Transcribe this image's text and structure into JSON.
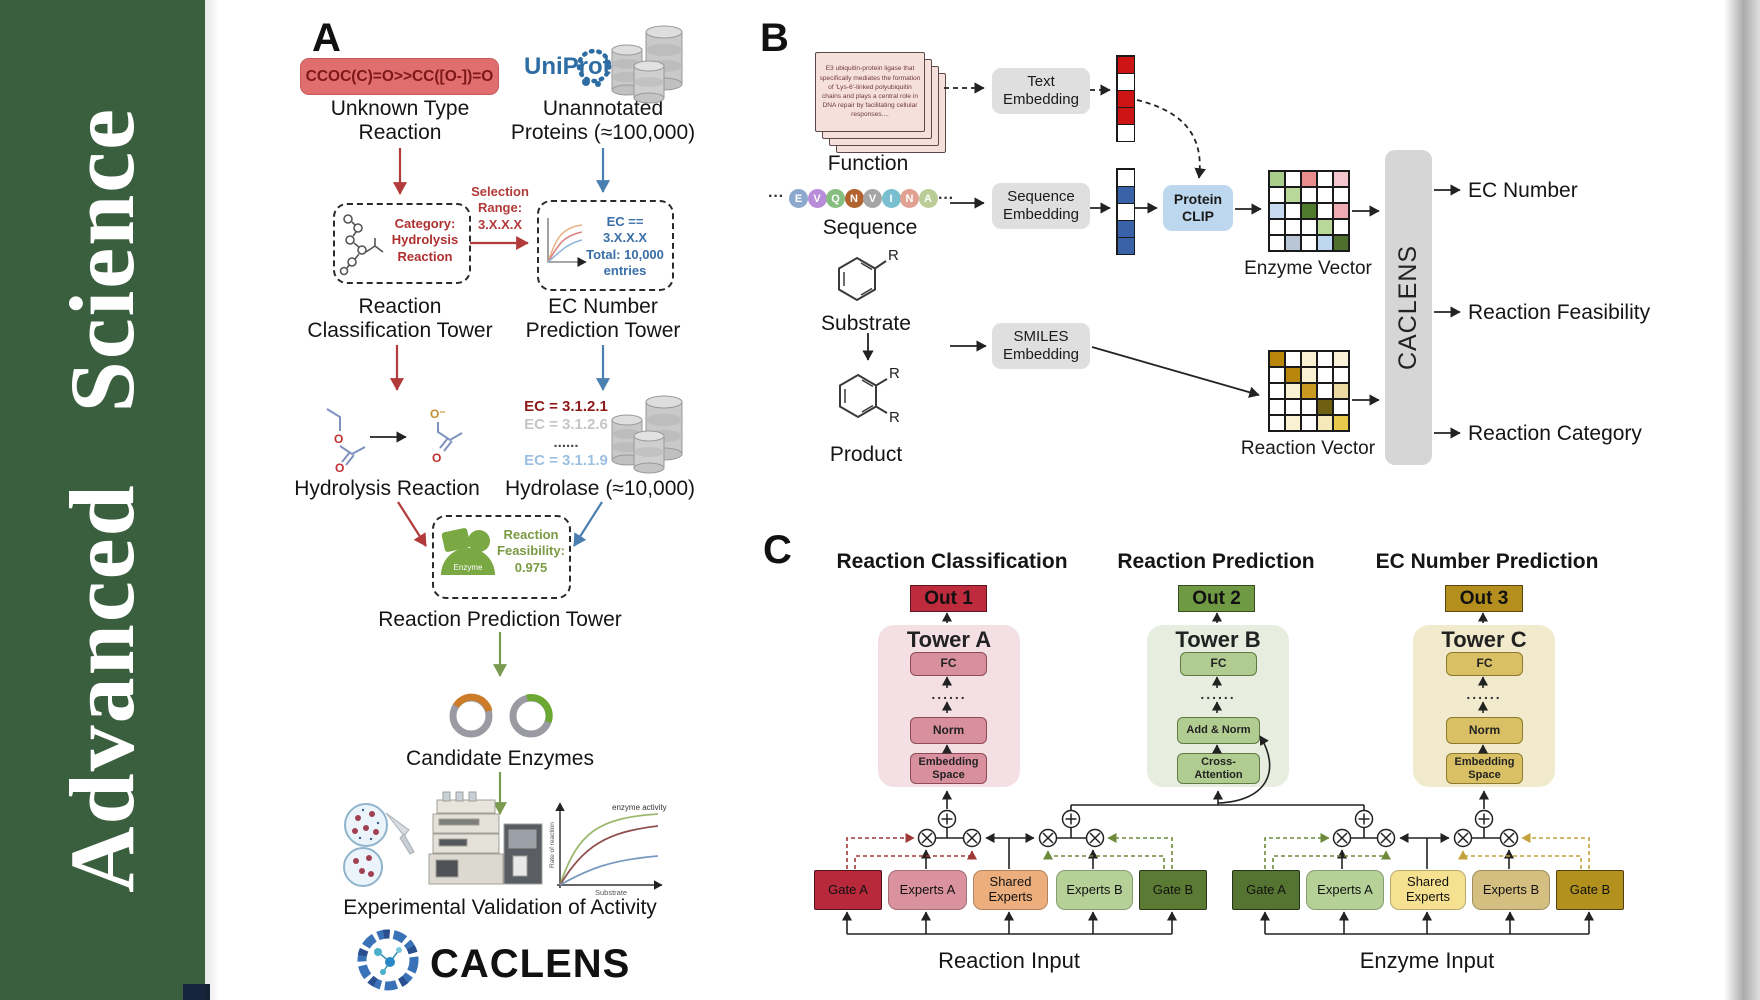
{
  "journal": {
    "spine_title": "Advanced  Science"
  },
  "panel_a": {
    "label": "A",
    "smiles": "CCOC(C)=O>>CC([O-])=O",
    "unknown_reaction_label": "Unknown Type\nReaction",
    "uniprot": "UniProt",
    "unannotated_label": "Unannotated\nProteins (≈100,000)",
    "category_box": "Category:\nHydrolysis\nReaction",
    "selection_label": "Selection\nRange:\n3.X.X.X",
    "ec_filter_box": "EC == 3.X.X.X\nTotal: 10,000\nentries",
    "classification_tower_label": "Reaction\nClassification Tower",
    "ec_tower_label": "EC Number\nPrediction Tower",
    "hydrolysis_label": "Hydrolysis Reaction",
    "ec_list": [
      {
        "text": "EC = 3.1.2.1",
        "color": "#8e1a1a"
      },
      {
        "text": "EC = 3.1.2.6",
        "color": "#c6c6c6"
      },
      {
        "text": "......",
        "color": "#4a4a4a"
      },
      {
        "text": "EC = 3.1.1.9",
        "color": "#9cc0e0"
      }
    ],
    "hydrolase_label": "Hydrolase (≈10,000)",
    "enzyme_badge": "Enzyme",
    "feasibility_label": "Reaction\nFeasibility:\n0.975",
    "prediction_tower_label": "Reaction Prediction Tower",
    "candidates_label": "Candidate Enzymes",
    "validation_label": "Experimental Validation of Activity",
    "activity_plot": {
      "ylabel": "Rate of reaction",
      "xlabel": "Substrate",
      "annotation": "enzyme activity"
    },
    "logo_text": "CACLENS",
    "atoms": {
      "o1": "O",
      "o2": "O",
      "o_minus": "O⁻",
      "o3": "O"
    }
  },
  "panel_b": {
    "label": "B",
    "function_card": "E3 ubiquitin-protein ligase that specifically mediates the formation of 'Lys-6'-linked polyubiquitin chains and plays a central role in DNA repair by facilitating cellular responses....",
    "function_label": "Function",
    "seq_ellipsis_left": "···",
    "seq_ellipsis_right": "···",
    "sequence": [
      {
        "letter": "E",
        "color": "#8ca8cc"
      },
      {
        "letter": "V",
        "color": "#b98cd9"
      },
      {
        "letter": "Q",
        "color": "#86be7f"
      },
      {
        "letter": "N",
        "color": "#b2622f"
      },
      {
        "letter": "V",
        "color": "#a5a5a5"
      },
      {
        "letter": "I",
        "color": "#79bfcf"
      },
      {
        "letter": "N",
        "color": "#e0a193"
      },
      {
        "letter": "A",
        "color": "#bbcd96"
      }
    ],
    "sequence_label": "Sequence",
    "substrate_label": "Substrate",
    "product_label": "Product",
    "r1": "R",
    "r2": "R",
    "r3": "R",
    "text_embedding": "Text\nEmbedding",
    "sequence_embedding": "Sequence\nEmbedding",
    "smiles_embedding": "SMILES\nEmbedding",
    "protein_clip": "Protein\nCLIP",
    "text_vector": [
      "#cc1414",
      "#ffffff",
      "#cc1414",
      "#cc1414",
      "#ffffff"
    ],
    "sequence_vector": [
      "#ffffff",
      "#3a62a8",
      "#ffffff",
      "#3a62a8",
      "#3a62a8"
    ],
    "enzyme_vector_label": "Enzyme Vector",
    "reaction_vector_label": "Reaction Vector",
    "enzyme_matrix": [
      [
        "#a9cd8b",
        "#ffffff",
        "#e98c8c",
        "#ffffff",
        "#f4c6ce"
      ],
      [
        "#ffffff",
        "#b9d99b",
        "#ffffff",
        "#ffffff",
        "#ffffff"
      ],
      [
        "#c6daf0",
        "#ffffff",
        "#4f7b2f",
        "#ffffff",
        "#f0aab2"
      ],
      [
        "#ffffff",
        "#ffffff",
        "#ffffff",
        "#b9d99b",
        "#ffffff"
      ],
      [
        "#ffffff",
        "#b9c6d6",
        "#ffffff",
        "#bed6f0",
        "#4f6f2f"
      ]
    ],
    "reaction_matrix": [
      [
        "#b8860b",
        "#ffffff",
        "#f9f1d1",
        "#ffffff",
        "#fbf3d9"
      ],
      [
        "#ffffff",
        "#b8860b",
        "#f9f1d1",
        "#ffffff",
        "#ffffff"
      ],
      [
        "#ffffff",
        "#f9f1d1",
        "#c99a1f",
        "#ffffff",
        "#eadaa2"
      ],
      [
        "#ffffff",
        "#ffffff",
        "#ffffff",
        "#6f5f10",
        "#ffffff"
      ],
      [
        "#ffffff",
        "#f9f1d1",
        "#ffffff",
        "#f6e9b9",
        "#e9c94b"
      ]
    ],
    "caclens": "CACLENS",
    "outputs": [
      "EC Number",
      "Reaction Feasibility",
      "Reaction Category"
    ]
  },
  "panel_c": {
    "label": "C",
    "towers": [
      {
        "heading": "Reaction Classification",
        "out": "Out 1",
        "tower": "Tower A",
        "fc": "FC",
        "dots": "......",
        "mid": "Norm",
        "bottom": "Embedding\nSpace",
        "out_bg": "#be2b3c",
        "bg": "#f4e0e4",
        "block_bg": "#d9909e",
        "block_border": "#8e4a56"
      },
      {
        "heading": "Reaction Prediction",
        "out": "Out 2",
        "tower": "Tower B",
        "fc": "FC",
        "dots": "......",
        "mid": "Add & Norm",
        "bottom": "Cross-\nAttention",
        "out_bg": "#6f9a43",
        "bg": "#e8eedf",
        "block_bg": "#b0cc90",
        "block_border": "#5e7a42"
      },
      {
        "heading": "EC Number Prediction",
        "out": "Out 3",
        "tower": "Tower C",
        "fc": "FC",
        "dots": "......",
        "mid": "Norm",
        "bottom": "Embedding\nSpace",
        "out_bg": "#b58f1e",
        "bg": "#f2eacd",
        "block_bg": "#d9c065",
        "block_border": "#8e7a2e"
      }
    ],
    "groups": {
      "left": {
        "input_label": "Reaction Input",
        "items": [
          {
            "label": "Gate A",
            "bg": "#b7293b"
          },
          {
            "label": "Experts A",
            "bg": "#d9929e"
          },
          {
            "label": "Shared\nExperts",
            "bg": "#ecae7c"
          },
          {
            "label": "Experts B",
            "bg": "#b5d197"
          },
          {
            "label": "Gate B",
            "bg": "#5b7a33"
          }
        ]
      },
      "right": {
        "input_label": "Enzyme Input",
        "items": [
          {
            "label": "Gate A",
            "bg": "#567431"
          },
          {
            "label": "Experts A",
            "bg": "#b5d197"
          },
          {
            "label": "Shared\nExperts",
            "bg": "#f6e190"
          },
          {
            "label": "Experts B",
            "bg": "#d5bf80"
          },
          {
            "label": "Gate B",
            "bg": "#b3911f"
          }
        ]
      }
    }
  }
}
